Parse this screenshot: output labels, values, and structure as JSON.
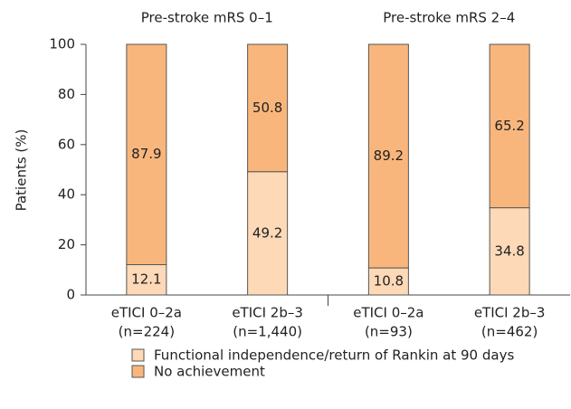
{
  "chart_data": {
    "type": "stacked_bar",
    "groups": [
      "Pre-stroke mRS 0–1",
      "Pre-stroke mRS 2–4"
    ],
    "y_label": "Patients (%)",
    "categories": [
      [
        "eTICI 0–2a",
        "(n=224)"
      ],
      [
        "eTICI 2b–3",
        "(n=1,440)"
      ],
      [
        "eTICI 0–2a",
        "(n=93)"
      ],
      [
        "eTICI 2b–3",
        "(n=462)"
      ]
    ],
    "series": [
      {
        "name": "Functional independence/return of Rankin at 90 days",
        "color": "#fdd9b7",
        "values": [
          12.1,
          49.2,
          10.8,
          34.8
        ]
      },
      {
        "name": "No achievement",
        "color": "#f9b67c",
        "values": [
          87.9,
          50.8,
          89.2,
          65.2
        ]
      }
    ],
    "ylim": [
      0,
      100
    ],
    "yticks": [
      0,
      20,
      40,
      60,
      80,
      100
    ]
  }
}
